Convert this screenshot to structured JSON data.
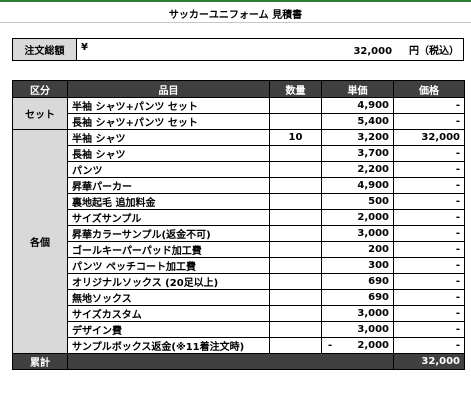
{
  "title": "サッカーユニフォーム 見積書",
  "summary": {
    "label": "注文総額",
    "currency": "¥",
    "amount": "32,000",
    "suffix": "円（税込）"
  },
  "table": {
    "headers": [
      "区分",
      "品目",
      "数量",
      "単価",
      "価格"
    ],
    "groups": [
      {
        "category": "セット",
        "rows": [
          {
            "item": "半袖 シャツ+パンツ セット",
            "qty": "",
            "unit": "4,900",
            "price": "-"
          },
          {
            "item": "長袖 シャツ+パンツ セット",
            "qty": "",
            "unit": "5,400",
            "price": "-"
          }
        ]
      },
      {
        "category": "各個",
        "rows": [
          {
            "item": "半袖 シャツ",
            "qty": "10",
            "unit": "3,200",
            "price": "32,000"
          },
          {
            "item": "長袖 シャツ",
            "qty": "",
            "unit": "3,700",
            "price": "-"
          },
          {
            "item": "パンツ",
            "qty": "",
            "unit": "2,200",
            "price": "-"
          },
          {
            "item": "昇華パーカー",
            "qty": "",
            "unit": "4,900",
            "price": "-"
          },
          {
            "item": "裏地起毛 追加料金",
            "qty": "",
            "unit": "500",
            "price": "-"
          },
          {
            "item": "サイズサンプル",
            "qty": "",
            "unit": "2,000",
            "price": "-"
          },
          {
            "item": "昇華カラーサンプル(返金不可)",
            "qty": "",
            "unit": "3,000",
            "price": "-"
          },
          {
            "item": "ゴールキーパーパッド加工費",
            "qty": "",
            "unit": "200",
            "price": "-"
          },
          {
            "item": "パンツ ペッチコート加工費",
            "qty": "",
            "unit": "300",
            "price": "-"
          },
          {
            "item": "オリジナルソックス (20足以上)",
            "qty": "",
            "unit": "690",
            "price": "-"
          },
          {
            "item": "無地ソックス",
            "qty": "",
            "unit": "690",
            "price": "-"
          },
          {
            "item": "サイズカスタム",
            "qty": "",
            "unit": "3,000",
            "price": "-"
          },
          {
            "item": "デザイン費",
            "qty": "",
            "unit": "3,000",
            "price": "-"
          },
          {
            "item": "サンプルボックス返金(※11着注文時)",
            "qty": "",
            "unit_prefix": "-",
            "unit": "2,000",
            "price": "-"
          }
        ]
      }
    ],
    "total": {
      "label": "累計",
      "price": "32,000"
    }
  }
}
